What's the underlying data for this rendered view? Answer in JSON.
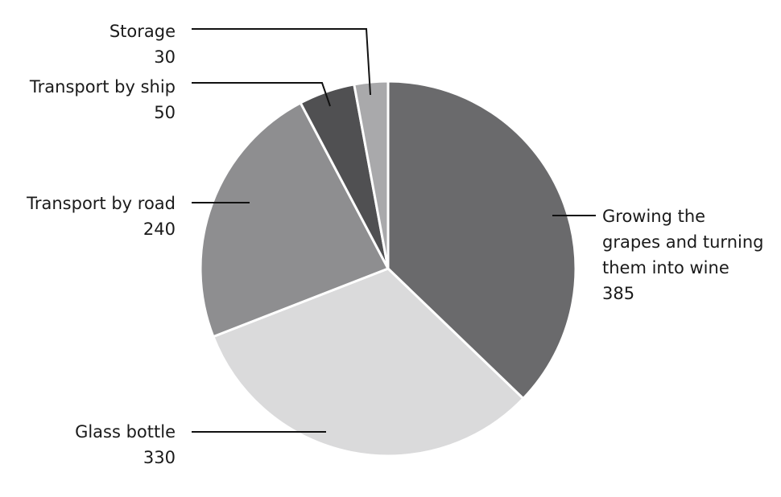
{
  "chart_data": {
    "type": "pie",
    "title": "",
    "slices": [
      {
        "label": "Growing the grapes and turning them into wine",
        "label_lines": [
          "Growing the",
          "grapes and turning",
          "them into wine"
        ],
        "value": 385,
        "value_text": "385",
        "color": "#6a6a6c"
      },
      {
        "label": "Glass bottle",
        "label_lines": [
          "Glass bottle"
        ],
        "value": 330,
        "value_text": "330",
        "color": "#dadadb"
      },
      {
        "label": "Transport by road",
        "label_lines": [
          "Transport by road"
        ],
        "value": 240,
        "value_text": "240",
        "color": "#8e8e90"
      },
      {
        "label": "Transport by ship",
        "label_lines": [
          "Transport by ship"
        ],
        "value": 50,
        "value_text": "50",
        "color": "#505052"
      },
      {
        "label": "Storage",
        "label_lines": [
          "Storage"
        ],
        "value": 30,
        "value_text": "30",
        "color": "#a9a9ab"
      }
    ],
    "start": "12 o'clock",
    "direction": "clockwise",
    "legend": "none"
  }
}
